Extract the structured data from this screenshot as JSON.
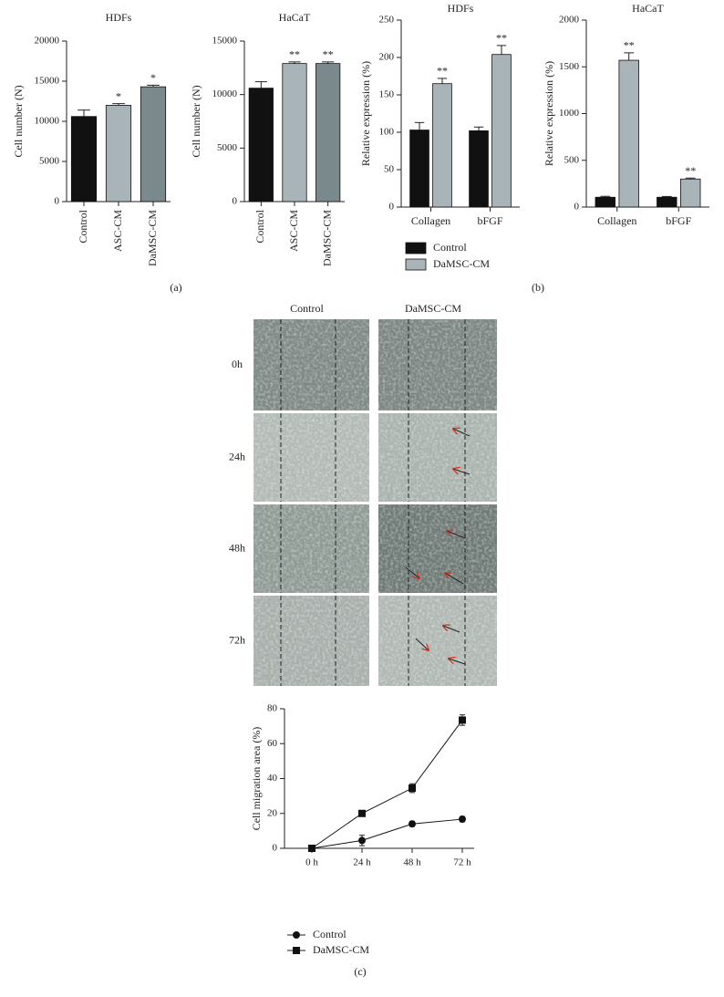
{
  "chart_data": [
    {
      "type": "bar",
      "title": "HDFs",
      "y_label": "Cell number (N)",
      "categories": [
        "Control",
        "ASC-CM",
        "DaMSC-CM"
      ],
      "values": [
        10600,
        12000,
        14300
      ],
      "errors": [
        800,
        200,
        200
      ],
      "colors": [
        "#111111",
        "#a9b4b8",
        "#7a8a8c"
      ],
      "annotations": [
        null,
        "*",
        "*"
      ],
      "ylim": [
        0,
        20000
      ],
      "yticks": [
        0,
        5000,
        10000,
        15000,
        20000
      ]
    },
    {
      "type": "bar",
      "title": "HaCaT",
      "y_label": "Cell number (N)",
      "categories": [
        "Control",
        "ASC-CM",
        "DaMSC-CM"
      ],
      "values": [
        10600,
        12900,
        12900
      ],
      "errors": [
        600,
        150,
        150
      ],
      "colors": [
        "#111111",
        "#a9b4b8",
        "#7a8a8c"
      ],
      "annotations": [
        null,
        "**",
        "**"
      ],
      "ylim": [
        0,
        15000
      ],
      "yticks": [
        0,
        5000,
        10000,
        15000
      ]
    },
    {
      "type": "bar",
      "title": "HDFs",
      "y_label": "Relative expression (%)",
      "categories": [
        "Collagen",
        "bFGF"
      ],
      "series": [
        {
          "name": "Control",
          "color": "#111111",
          "values": [
            103,
            102
          ],
          "errors": [
            10,
            5
          ]
        },
        {
          "name": "DaMSC-CM",
          "color": "#a9b4b8",
          "values": [
            165,
            204
          ],
          "errors": [
            7,
            12
          ],
          "annotations": [
            "**",
            "**"
          ]
        }
      ],
      "ylim": [
        0,
        250
      ],
      "yticks": [
        0,
        50,
        100,
        150,
        200,
        250
      ],
      "legend": true
    },
    {
      "type": "bar",
      "title": "HaCaT",
      "y_label": "Relative expression (%)",
      "categories": [
        "Collagen",
        "bFGF"
      ],
      "series": [
        {
          "color": "#111111",
          "values": [
            105,
            105
          ],
          "errors": [
            10,
            8
          ]
        },
        {
          "color": "#a9b4b8",
          "values": [
            1570,
            300
          ],
          "errors": [
            80,
            10
          ],
          "annotations": [
            "**",
            "**"
          ]
        }
      ],
      "ylim": [
        0,
        2000
      ],
      "yticks": [
        0,
        500,
        1000,
        1500,
        2000
      ]
    },
    {
      "type": "line",
      "y_label": "Cell migration area (%)",
      "categories": [
        "0 h",
        "24 h",
        "48 h",
        "72 h"
      ],
      "series": [
        {
          "name": "Control",
          "color": "#111111",
          "marker": "circle",
          "values": [
            0,
            4.5,
            14,
            16.7
          ],
          "errors": [
            0.5,
            3,
            1.5,
            1.5
          ]
        },
        {
          "name": "DaMSC-CM",
          "color": "#111111",
          "marker": "square",
          "values": [
            0,
            20,
            34.5,
            73.5
          ],
          "errors": [
            0.5,
            1.2,
            2.5,
            3
          ]
        }
      ],
      "ylim": [
        0,
        80
      ],
      "yticks": [
        0,
        20,
        40,
        60,
        80
      ],
      "legend": true
    }
  ],
  "micrographs": {
    "columns": [
      "Control",
      "DaMSC-CM"
    ],
    "rows": [
      "0h",
      "24h",
      "48h",
      "72h"
    ]
  },
  "panel_labels": [
    "(a)",
    "(b)",
    "(c)"
  ]
}
